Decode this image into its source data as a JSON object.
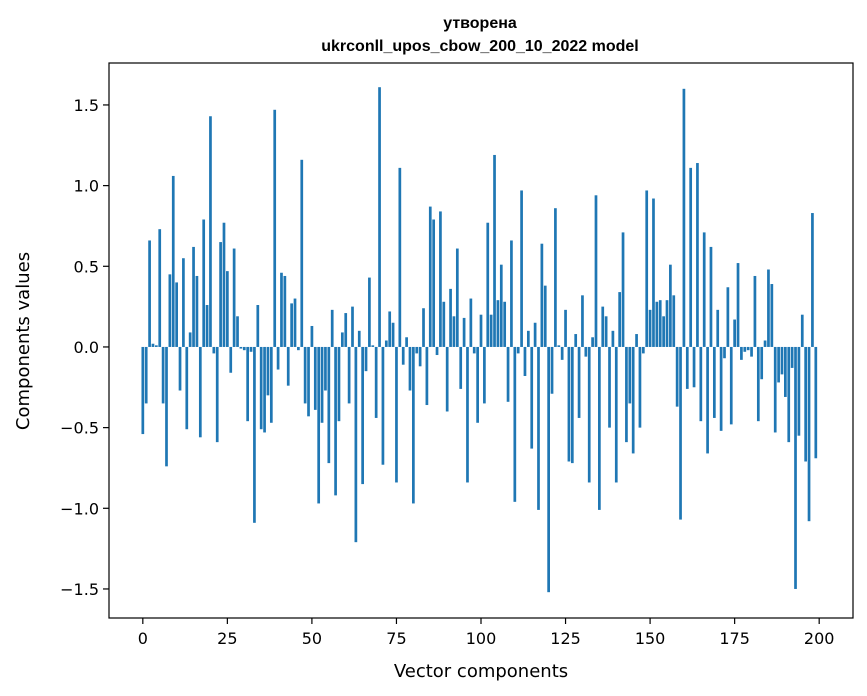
{
  "chart_data": {
    "type": "bar",
    "title_line1": "утворена",
    "title_line2": "ukrconll_upos_cbow_200_10_2022 model",
    "xlabel": "Vector components",
    "ylabel": "Components values",
    "xlim": [
      -10,
      210
    ],
    "ylim": [
      -1.68,
      1.76
    ],
    "xticks": [
      0,
      25,
      50,
      75,
      100,
      125,
      150,
      175,
      200
    ],
    "yticks": [
      -1.5,
      -1.0,
      -0.5,
      0.0,
      0.5,
      1.0,
      1.5
    ],
    "ytick_labels": [
      "−1.5",
      "−1.0",
      "−0.5",
      "0.0",
      "0.5",
      "1.0",
      "1.5"
    ],
    "bar_color": "#1f77b4",
    "grid": false,
    "values": [
      -0.54,
      -0.35,
      0.66,
      0.02,
      0.01,
      0.73,
      -0.35,
      -0.74,
      0.45,
      1.06,
      0.4,
      -0.27,
      0.55,
      -0.51,
      0.09,
      0.62,
      0.44,
      -0.56,
      0.79,
      0.26,
      1.43,
      -0.04,
      -0.59,
      0.65,
      0.77,
      0.47,
      -0.16,
      0.61,
      0.19,
      -0.01,
      -0.02,
      -0.46,
      -0.03,
      -1.09,
      0.26,
      -0.51,
      -0.53,
      -0.3,
      -0.47,
      1.47,
      -0.14,
      0.46,
      0.44,
      -0.24,
      0.27,
      0.3,
      -0.02,
      1.16,
      -0.35,
      -0.43,
      0.13,
      -0.39,
      -0.97,
      -0.47,
      -0.27,
      -0.72,
      0.23,
      -0.92,
      -0.46,
      0.09,
      0.21,
      -0.35,
      0.25,
      -1.21,
      0.1,
      -0.85,
      -0.15,
      0.43,
      0.01,
      -0.44,
      1.61,
      -0.73,
      0.04,
      0.22,
      0.15,
      -0.84,
      1.11,
      -0.11,
      0.06,
      -0.27,
      -0.97,
      -0.04,
      -0.12,
      0.24,
      -0.36,
      0.87,
      0.79,
      -0.05,
      0.84,
      0.28,
      -0.4,
      0.36,
      0.19,
      0.61,
      -0.26,
      0.18,
      -0.84,
      0.3,
      -0.04,
      -0.47,
      0.2,
      -0.35,
      0.77,
      0.2,
      1.19,
      0.29,
      0.51,
      0.28,
      -0.34,
      0.66,
      -0.96,
      -0.04,
      0.97,
      -0.18,
      0.1,
      -0.63,
      0.15,
      -1.01,
      0.64,
      0.38,
      -1.52,
      -0.29,
      0.86,
      0.01,
      -0.08,
      0.23,
      -0.71,
      -0.72,
      0.08,
      -0.44,
      0.32,
      -0.06,
      -0.84,
      0.06,
      0.94,
      -1.01,
      0.25,
      0.19,
      -0.5,
      0.1,
      -0.84,
      0.34,
      0.71,
      -0.59,
      -0.35,
      -0.66,
      0.08,
      -0.5,
      -0.04,
      0.97,
      0.23,
      0.92,
      0.28,
      0.29,
      0.19,
      0.29,
      0.51,
      0.32,
      -0.37,
      -1.07,
      1.6,
      -0.26,
      1.11,
      -0.25,
      1.14,
      -0.46,
      0.71,
      -0.66,
      0.62,
      -0.44,
      0.23,
      -0.52,
      -0.07,
      0.37,
      -0.48,
      0.17,
      0.52,
      -0.08,
      -0.03,
      -0.02,
      -0.06,
      0.44,
      -0.46,
      -0.2,
      0.04,
      0.48,
      0.39,
      -0.53,
      -0.22,
      -0.17,
      -0.31,
      -0.59,
      -0.13,
      -1.5,
      -0.55,
      0.2,
      -0.71,
      -1.08,
      0.83,
      -0.69
    ]
  }
}
